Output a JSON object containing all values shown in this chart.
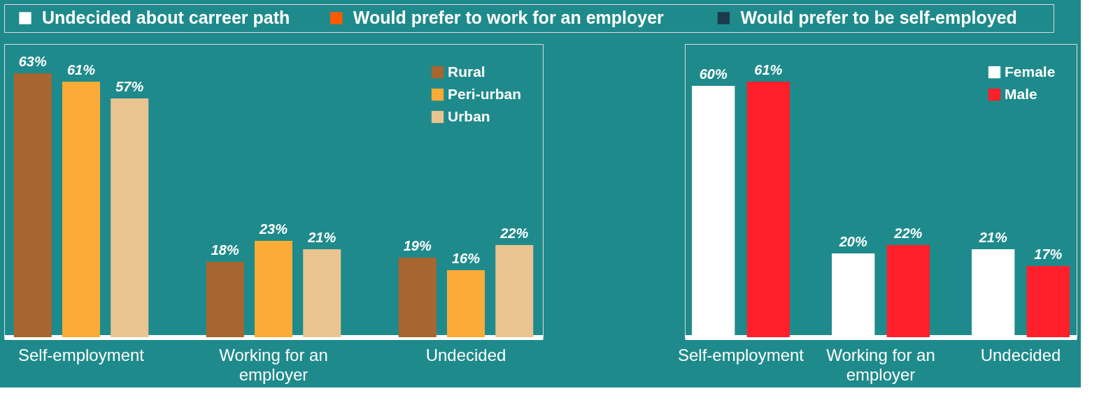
{
  "chart_data": [
    {
      "type": "other",
      "categories": [
        "Undecided about carreer path",
        "Would prefer to work for an employer",
        "Would prefer to be self-employed"
      ],
      "colors": [
        "#ffffff",
        "#ff5a00",
        "#1b3a4b"
      ]
    },
    {
      "type": "bar",
      "categories": [
        "Self-employment",
        "Working for an employer",
        "Undecided"
      ],
      "ylim": [
        0,
        70
      ],
      "tick_labels": "x",
      "legend": "top right",
      "series": [
        {
          "name": "Rural",
          "color": "#a8652f",
          "values": [
            63,
            18,
            19
          ],
          "value_labels": [
            "63%",
            "18%",
            "19%"
          ]
        },
        {
          "name": "Peri-urban",
          "color": "#fbab36",
          "values": [
            61,
            23,
            16
          ],
          "value_labels": [
            "61%",
            "23%",
            "16%"
          ]
        },
        {
          "name": "Urban",
          "color": "#e9c490",
          "values": [
            57,
            21,
            22
          ],
          "value_labels": [
            "57%",
            "21%",
            "22%"
          ]
        }
      ]
    },
    {
      "type": "bar",
      "categories": [
        "Self-employment",
        "Working for an employer",
        "Undecided"
      ],
      "ylim": [
        0,
        70
      ],
      "tick_labels": "x",
      "legend": "top right",
      "series": [
        {
          "name": "Female",
          "color": "#ffffff",
          "values": [
            60,
            20,
            21
          ],
          "value_labels": [
            "60%",
            "20%",
            "21%"
          ]
        },
        {
          "name": "Male",
          "color": "#ff1f2a",
          "values": [
            61,
            22,
            17
          ],
          "value_labels": [
            "61%",
            "22%",
            "17%"
          ]
        }
      ]
    }
  ]
}
